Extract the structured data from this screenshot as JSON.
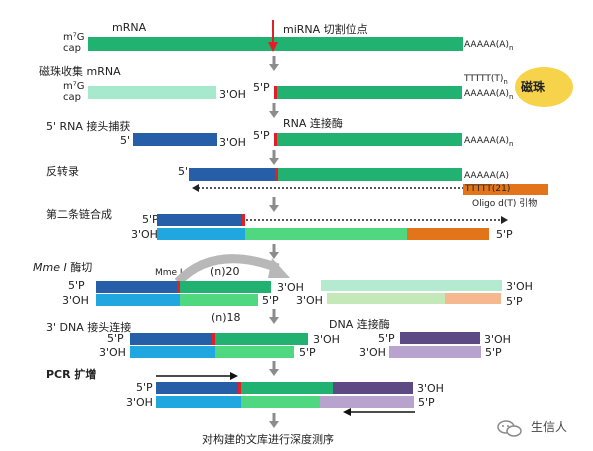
{
  "colors": {
    "mrna": "#21b171",
    "adapter5": "#265ea7",
    "cdna": "#21a7e0",
    "second_strand": "#4fd87f",
    "primer": "#e2751a",
    "cut_mark": "#e31e24",
    "bead": "#f6d34a",
    "adapter3_top": "#5d4a85",
    "adapter3_bottom": "#b8a3cf",
    "arrow": "#8c8c8c"
  },
  "labels": {
    "cap_line1": "m⁷G",
    "cap_line2": "cap",
    "mrna": "mRNA",
    "mirna_cut": "miRNA 切割位点",
    "polyA": "AAAAA(A)",
    "polyA_sub": "n",
    "polyT": "TTTTT(T)",
    "polyT_sub": "n",
    "bead": "磁珠",
    "step_bead_capture": "磁珠收集 mRNA",
    "oh3": "3'OH",
    "p5": "5'P",
    "step_rna_adapter": "5' RNA 接头捕获",
    "five_prime": "5'",
    "rna_ligase": "RNA 连接酶",
    "step_rt": "反转录",
    "five_prime_b": "5'",
    "polyA_plain": "AAAAA(A)",
    "oligo_dt": "TTTTT(21)",
    "oligo_dt_primer": "Oligo d(T) 引物",
    "step_second_strand": "第二条链合成",
    "step_mmei": "Mme I 酶切",
    "mmei_italic": "Mme I",
    "mmei_site": "Mme I",
    "n20": "(n)20",
    "n18": "(n)18",
    "step_dna_adapter": "3' DNA 接头连接",
    "dna_ligase": "DNA 连接酶",
    "step_pcr": "PCR 扩增",
    "final": "对构建的文库进行深度测序",
    "watermark": "生信人"
  }
}
